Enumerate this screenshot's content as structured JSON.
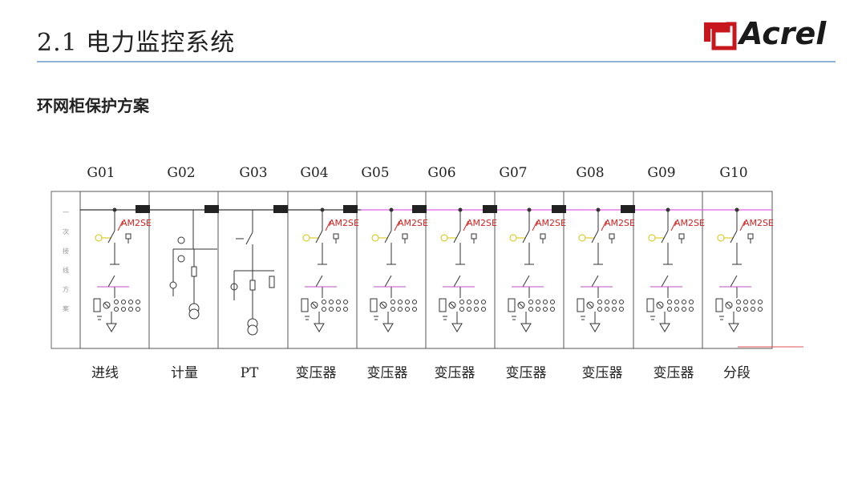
{
  "header": {
    "title": "2.1 电力监控系统",
    "logo_text": "Acrel",
    "accent_color": "#c8161d",
    "rule_color": "#8fb3d9"
  },
  "subtitle": "环网柜保护方案",
  "diagram": {
    "side_label": [
      "一",
      "次",
      "接",
      "线",
      "方",
      "案"
    ],
    "device_label": "AM2SE",
    "panels": [
      {
        "code": "G01",
        "name": "进线"
      },
      {
        "code": "G02",
        "name": "计量"
      },
      {
        "code": "G03",
        "name": "PT"
      },
      {
        "code": "G04",
        "name": "变压器"
      },
      {
        "code": "G05",
        "name": "变压器"
      },
      {
        "code": "G06",
        "name": "变压器"
      },
      {
        "code": "G07",
        "name": "变压器"
      },
      {
        "code": "G08",
        "name": "变压器"
      },
      {
        "code": "G09",
        "name": "变压器"
      },
      {
        "code": "G10",
        "name": "分段"
      }
    ],
    "colors": {
      "line": "#333333",
      "bus_right": "#e060e0",
      "device": "#d42020",
      "tick": "#d4c400",
      "bus_link": "#222222"
    }
  }
}
